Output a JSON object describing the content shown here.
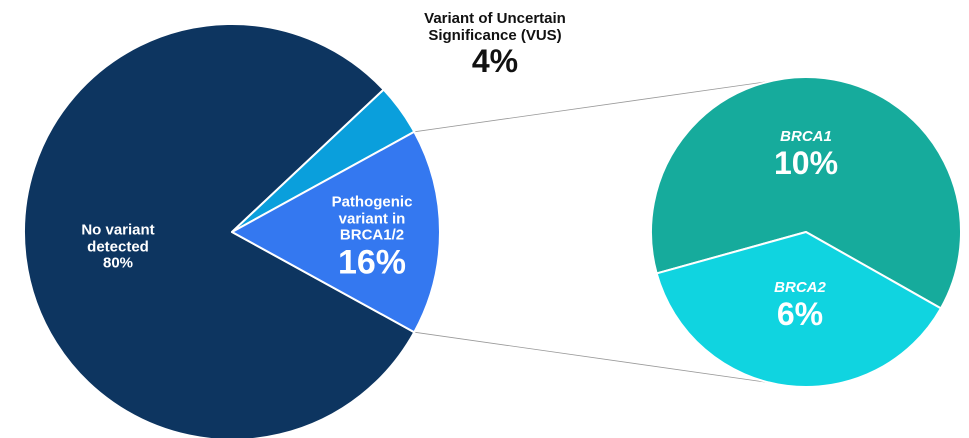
{
  "chart_data": [
    {
      "type": "pie",
      "categories": [
        "No variant detected",
        "Variant of Uncertain Significance (VUS)",
        "Pathogenic variant in BRCA1/2"
      ],
      "values": [
        80,
        4,
        16
      ],
      "value_labels": [
        "80%",
        "4%",
        "16%"
      ],
      "colors": [
        "#0d3560",
        "#0a9fdc",
        "#3478f0"
      ]
    },
    {
      "type": "pie",
      "categories": [
        "BRCA1",
        "BRCA2"
      ],
      "values": [
        10,
        6
      ],
      "value_labels": [
        "10%",
        "6%"
      ],
      "colors": [
        "#16ab9c",
        "#10d4e0"
      ]
    }
  ]
}
